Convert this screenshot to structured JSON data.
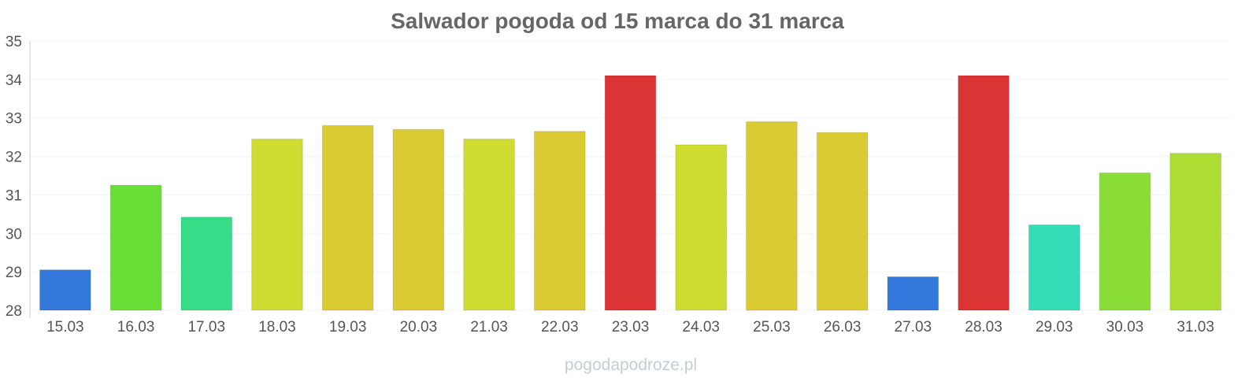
{
  "chart_data": {
    "type": "bar",
    "title": "Salwador pogoda od 15 marca do 31 marca",
    "xlabel": "",
    "ylabel": "",
    "ylim": [
      28,
      35
    ],
    "yticks": [
      "28",
      "29",
      "30",
      "31",
      "32",
      "33",
      "34",
      "35"
    ],
    "grid": true,
    "categories": [
      "15.03",
      "16.03",
      "17.03",
      "18.03",
      "19.03",
      "20.03",
      "21.03",
      "22.03",
      "23.03",
      "24.03",
      "25.03",
      "26.03",
      "27.03",
      "28.03",
      "29.03",
      "30.03",
      "31.03"
    ],
    "values": [
      29.05,
      31.25,
      30.42,
      32.45,
      32.8,
      32.7,
      32.45,
      32.65,
      34.1,
      32.3,
      32.9,
      32.62,
      28.87,
      34.1,
      30.22,
      31.57,
      32.08
    ],
    "colors": [
      "#3478dc",
      "#6ade37",
      "#36dc87",
      "#cfdd33",
      "#dbcb33",
      "#dbcb33",
      "#cfdd33",
      "#dbcb33",
      "#dc3435",
      "#cfdd33",
      "#dbcb33",
      "#dbcb33",
      "#3478dc",
      "#dc3435",
      "#35dcb8",
      "#8add37",
      "#addc33"
    ],
    "watermark": "pogodapodroze.pl"
  }
}
